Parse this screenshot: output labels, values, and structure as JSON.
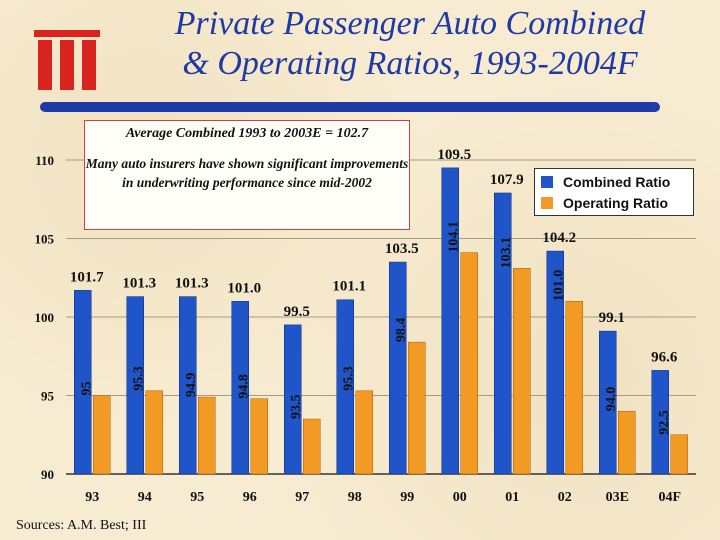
{
  "title_line1": "Private Passenger Auto Combined",
  "title_line2": "& Operating Ratios, 1993-2004F",
  "logo_text": "iii",
  "colors": {
    "title": "#1f3aa6",
    "combined": "#1f55c8",
    "operating": "#f39a24",
    "rule": "#1e3ba8"
  },
  "annotation": {
    "average": "Average Combined 1993 to 2003E = 102.7",
    "note": "Many auto insurers have shown significant improvements in underwriting performance since mid-2002"
  },
  "source": "Sources: A.M. Best; III",
  "chart_data": {
    "type": "bar",
    "categories": [
      "93",
      "94",
      "95",
      "96",
      "97",
      "98",
      "99",
      "00",
      "01",
      "02",
      "03E",
      "04F"
    ],
    "series": [
      {
        "name": "Combined Ratio",
        "values": [
          101.7,
          101.3,
          101.3,
          101.0,
          99.5,
          101.1,
          103.5,
          109.5,
          107.9,
          104.2,
          99.1,
          96.6
        ],
        "labels": [
          "101.7",
          "101.3",
          "101.3",
          "101.0",
          "99.5",
          "101.1",
          "103.5",
          "109.5",
          "107.9",
          "104.2",
          "99.1",
          "96.6"
        ]
      },
      {
        "name": "Operating Ratio",
        "values": [
          95,
          95.3,
          94.9,
          94.8,
          93.5,
          95.3,
          98.4,
          104.1,
          103.1,
          101.0,
          94.0,
          92.5
        ],
        "labels": [
          "95",
          "95.3",
          "94.9",
          "94.8",
          "93.5",
          "95.3",
          "98.4",
          "104.1",
          "103.1",
          "101.0",
          "94.0",
          "92.5"
        ]
      }
    ],
    "yticks": [
      "90",
      "95",
      "100",
      "105",
      "110"
    ],
    "ylim": [
      90,
      110
    ],
    "legend": [
      "Combined Ratio",
      "Operating Ratio"
    ],
    "grid": true
  }
}
